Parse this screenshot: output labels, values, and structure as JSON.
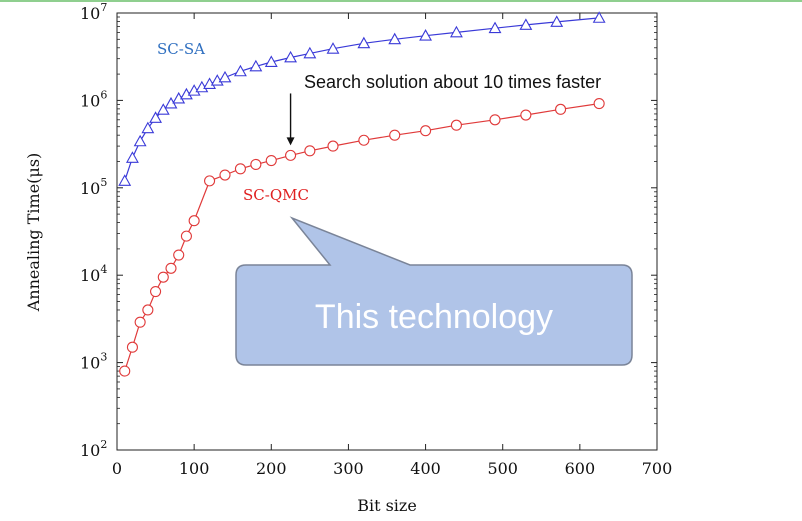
{
  "chart_data": {
    "type": "line",
    "xlabel": "Bit size",
    "ylabel": "Annealing Time(μs)",
    "xlim": [
      0,
      700
    ],
    "ylim": [
      100,
      10000000
    ],
    "yscale": "log",
    "xticks": [
      0,
      100,
      200,
      300,
      400,
      500,
      600,
      700
    ],
    "yticks": [
      {
        "value": 100,
        "base": "10",
        "exp": "2"
      },
      {
        "value": 1000,
        "base": "10",
        "exp": "3"
      },
      {
        "value": 10000,
        "base": "10",
        "exp": "4"
      },
      {
        "value": 100000,
        "base": "10",
        "exp": "5"
      },
      {
        "value": 1000000,
        "base": "10",
        "exp": "6"
      },
      {
        "value": 10000000,
        "base": "10",
        "exp": "7"
      }
    ],
    "grid": false,
    "series": [
      {
        "name": "SC-SA",
        "color": "#3a3ad8",
        "label_color": "#2f6fc0",
        "marker": "triangle",
        "x": [
          10,
          20,
          30,
          40,
          50,
          60,
          70,
          80,
          90,
          100,
          110,
          120,
          130,
          140,
          160,
          180,
          200,
          225,
          250,
          280,
          320,
          360,
          400,
          440,
          490,
          530,
          570,
          625
        ],
        "y": [
          120000,
          220000,
          340000,
          480000,
          630000,
          780000,
          920000,
          1050000,
          1170000,
          1290000,
          1410000,
          1540000,
          1680000,
          1830000,
          2150000,
          2450000,
          2750000,
          3100000,
          3450000,
          3900000,
          4500000,
          5000000,
          5500000,
          6000000,
          6700000,
          7300000,
          7900000,
          8800000
        ]
      },
      {
        "name": "SC-QMC",
        "color": "#e03a3a",
        "label_color": "#e02020",
        "marker": "circle",
        "x": [
          10,
          20,
          30,
          40,
          50,
          60,
          70,
          80,
          90,
          100,
          120,
          140,
          160,
          180,
          200,
          225,
          250,
          280,
          320,
          360,
          400,
          440,
          490,
          530,
          575,
          625
        ],
        "y": [
          800,
          1500,
          2900,
          4000,
          6500,
          9500,
          12000,
          17000,
          28000,
          42000,
          120000,
          140000,
          165000,
          185000,
          205000,
          235000,
          265000,
          300000,
          350000,
          400000,
          450000,
          520000,
          600000,
          680000,
          790000,
          920000
        ]
      }
    ],
    "annotations": {
      "arrow_text": "Search solution about 10 times faster",
      "arrow_x": 225,
      "arrow_y_from": 3100000,
      "arrow_y_to": 235000
    }
  },
  "callout": {
    "text": "This technology",
    "fill": "#b0c4e8",
    "stroke": "#7a8498"
  }
}
